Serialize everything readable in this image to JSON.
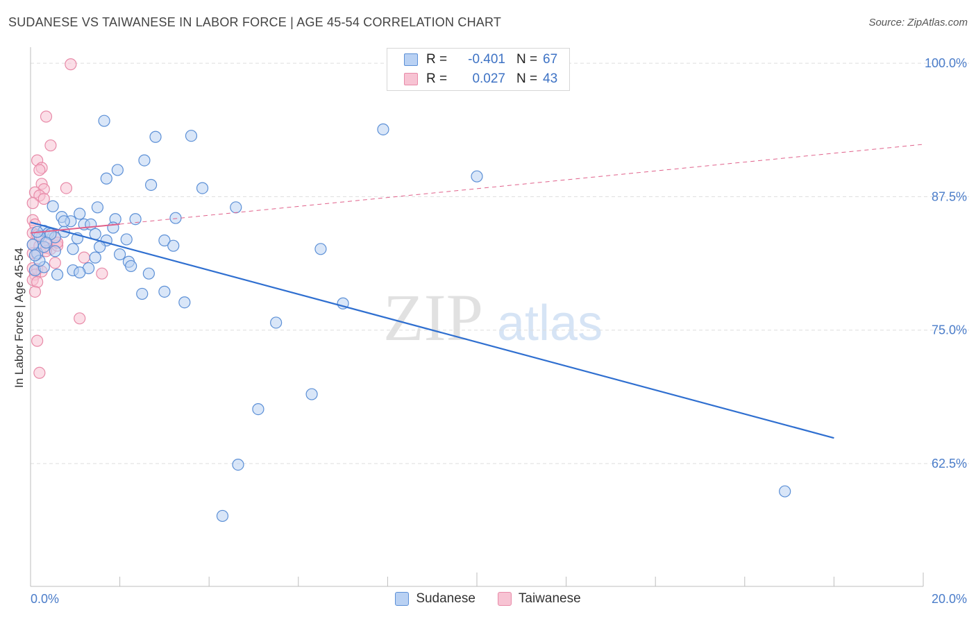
{
  "title": "SUDANESE VS TAIWANESE IN LABOR FORCE | AGE 45-54 CORRELATION CHART",
  "source": "Source: ZipAtlas.com",
  "watermark": {
    "zip": "ZIP",
    "atlas": "atlas"
  },
  "colors": {
    "sudanese": "#5b8fd6",
    "sudanese_fill": "#b9d1f3",
    "taiwanese": "#e88aa8",
    "taiwanese_fill": "#f7c3d3",
    "accent_text": "#3d72c4",
    "grid": "#dedede"
  },
  "legend": {
    "rows": [
      {
        "r_label": "R =",
        "r_value": "-0.401",
        "n_label": "N =",
        "n_value": "67",
        "series": "sudanese"
      },
      {
        "r_label": "R =",
        "r_value": "0.027",
        "n_label": "N =",
        "n_value": "43",
        "series": "taiwanese"
      }
    ]
  },
  "bottom_legend": [
    {
      "label": "Sudanese",
      "series": "sudanese"
    },
    {
      "label": "Taiwanese",
      "series": "taiwanese"
    }
  ],
  "chart_data": {
    "type": "scatter",
    "title": "SUDANESE VS TAIWANESE IN LABOR FORCE | AGE 45-54 CORRELATION CHART",
    "xlabel": "",
    "ylabel": "In Labor Force | Age 45-54",
    "xlim": [
      0,
      20
    ],
    "ylim": [
      51,
      101.5
    ],
    "x_tick_labels": [
      "0.0%",
      "20.0%"
    ],
    "y_ticks": [
      62.5,
      75.0,
      87.5,
      100.0
    ],
    "y_tick_labels": [
      "62.5%",
      "75.0%",
      "87.5%",
      "100.0%"
    ],
    "grid": true,
    "legend_position": "top-center",
    "series": [
      {
        "name": "Sudanese",
        "color": "#5b8fd6",
        "trend": {
          "x": [
            0,
            18.0
          ],
          "y": [
            85.1,
            64.9
          ],
          "style": "solid"
        },
        "points": [
          [
            1.65,
            94.6
          ],
          [
            2.8,
            93.1
          ],
          [
            3.6,
            93.2
          ],
          [
            7.9,
            93.8
          ],
          [
            2.55,
            90.9
          ],
          [
            1.95,
            90.0
          ],
          [
            1.7,
            89.2
          ],
          [
            2.7,
            88.6
          ],
          [
            3.85,
            88.3
          ],
          [
            10.0,
            89.4
          ],
          [
            0.5,
            86.6
          ],
          [
            1.5,
            86.5
          ],
          [
            4.6,
            86.5
          ],
          [
            1.1,
            85.9
          ],
          [
            0.7,
            85.6
          ],
          [
            0.9,
            85.2
          ],
          [
            1.9,
            85.4
          ],
          [
            2.35,
            85.4
          ],
          [
            3.25,
            85.5
          ],
          [
            0.75,
            85.2
          ],
          [
            1.2,
            84.9
          ],
          [
            1.35,
            84.9
          ],
          [
            1.85,
            84.6
          ],
          [
            0.3,
            84.3
          ],
          [
            0.4,
            84.1
          ],
          [
            0.75,
            84.2
          ],
          [
            1.45,
            84.0
          ],
          [
            0.2,
            83.8
          ],
          [
            0.55,
            83.7
          ],
          [
            1.05,
            83.6
          ],
          [
            1.7,
            83.4
          ],
          [
            2.15,
            83.5
          ],
          [
            3.0,
            83.4
          ],
          [
            3.2,
            82.9
          ],
          [
            1.55,
            82.8
          ],
          [
            0.95,
            82.6
          ],
          [
            6.5,
            82.6
          ],
          [
            0.55,
            82.4
          ],
          [
            0.15,
            82.2
          ],
          [
            1.45,
            81.8
          ],
          [
            2.0,
            82.1
          ],
          [
            2.2,
            81.4
          ],
          [
            2.25,
            81.0
          ],
          [
            1.3,
            80.8
          ],
          [
            0.95,
            80.6
          ],
          [
            1.1,
            80.4
          ],
          [
            0.6,
            80.2
          ],
          [
            2.65,
            80.3
          ],
          [
            3.0,
            78.6
          ],
          [
            2.5,
            78.4
          ],
          [
            3.45,
            77.6
          ],
          [
            7.0,
            77.5
          ],
          [
            5.5,
            75.7
          ],
          [
            6.3,
            69.0
          ],
          [
            5.1,
            67.6
          ],
          [
            4.65,
            62.4
          ],
          [
            4.3,
            57.6
          ],
          [
            16.9,
            59.9
          ],
          [
            0.1,
            80.6
          ],
          [
            0.3,
            80.9
          ],
          [
            0.15,
            84.2
          ],
          [
            0.3,
            82.8
          ],
          [
            0.05,
            83.0
          ],
          [
            0.2,
            81.5
          ],
          [
            0.45,
            84.0
          ],
          [
            0.35,
            83.2
          ],
          [
            0.1,
            82.0
          ]
        ]
      },
      {
        "name": "Taiwanese",
        "color": "#e88aa8",
        "trend": {
          "x": [
            0,
            20
          ],
          "y": [
            84.1,
            92.4
          ],
          "style": "solid-then-dashed",
          "solid_until_x": 2.0
        },
        "points": [
          [
            0.9,
            99.9
          ],
          [
            0.35,
            95.0
          ],
          [
            0.45,
            92.3
          ],
          [
            0.15,
            90.9
          ],
          [
            0.25,
            90.2
          ],
          [
            0.2,
            90.0
          ],
          [
            0.25,
            88.7
          ],
          [
            0.3,
            88.2
          ],
          [
            0.8,
            88.3
          ],
          [
            0.1,
            87.9
          ],
          [
            0.2,
            87.6
          ],
          [
            0.3,
            87.3
          ],
          [
            0.05,
            86.9
          ],
          [
            0.05,
            85.3
          ],
          [
            0.1,
            84.9
          ],
          [
            0.05,
            84.1
          ],
          [
            0.15,
            83.9
          ],
          [
            0.25,
            83.7
          ],
          [
            0.4,
            83.4
          ],
          [
            0.55,
            83.6
          ],
          [
            0.6,
            83.2
          ],
          [
            0.05,
            83.0
          ],
          [
            0.2,
            82.9
          ],
          [
            0.35,
            82.7
          ],
          [
            0.45,
            82.6
          ],
          [
            0.6,
            82.9
          ],
          [
            0.05,
            82.2
          ],
          [
            0.15,
            82.1
          ],
          [
            0.35,
            82.4
          ],
          [
            1.2,
            81.8
          ],
          [
            0.55,
            81.3
          ],
          [
            0.05,
            80.8
          ],
          [
            0.15,
            80.7
          ],
          [
            0.25,
            80.5
          ],
          [
            0.1,
            80.2
          ],
          [
            0.05,
            79.7
          ],
          [
            0.15,
            79.5
          ],
          [
            0.1,
            78.6
          ],
          [
            1.6,
            80.3
          ],
          [
            1.1,
            76.1
          ],
          [
            0.15,
            74.0
          ],
          [
            0.2,
            71.0
          ],
          [
            0.6,
            83.2
          ]
        ]
      }
    ]
  }
}
